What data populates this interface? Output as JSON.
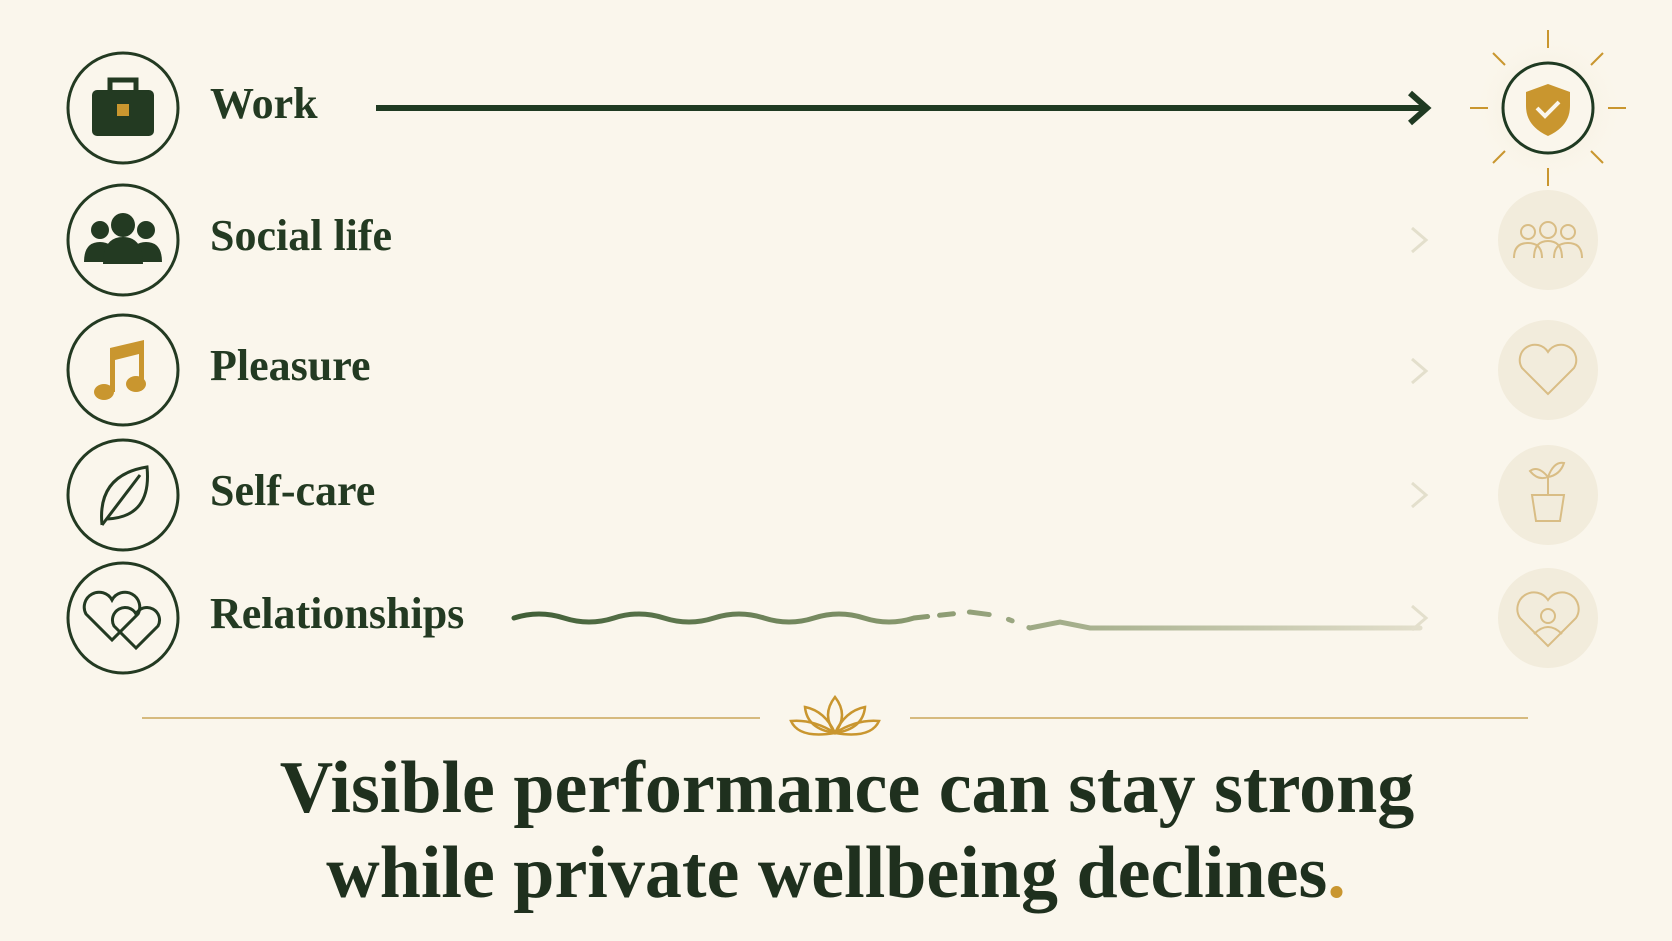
{
  "rows": [
    {
      "label": "Work"
    },
    {
      "label": "Social life"
    },
    {
      "label": "Pleasure"
    },
    {
      "label": "Self-care"
    },
    {
      "label": "Relationships"
    }
  ],
  "caption": {
    "lines": [
      "Visible performance can stay strong",
      "while private wellbeing declines"
    ],
    "end": "."
  }
}
